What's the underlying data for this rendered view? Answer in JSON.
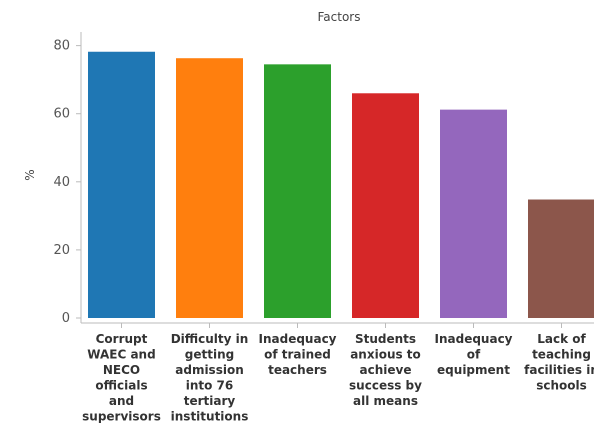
{
  "chart_data": {
    "type": "bar",
    "title": "Factors",
    "ylabel": "%",
    "xlabel": "",
    "ylim": [
      0,
      84
    ],
    "yticks": [
      0,
      20,
      40,
      60,
      80
    ],
    "grid": false,
    "legend": "none",
    "categories": [
      [
        "Corrupt",
        "WAEC and",
        "NECO",
        "officials",
        "and",
        "supervisors"
      ],
      [
        "Difficulty in",
        "getting",
        "admission",
        "into  76",
        "tertiary",
        "institutions"
      ],
      [
        "Inadequacy",
        "of trained",
        "teachers"
      ],
      [
        "Students",
        "anxious to",
        "achieve",
        "success by",
        "all means"
      ],
      [
        "Inadequacy",
        "of",
        "equipment"
      ],
      [
        "Lack of",
        "teaching",
        "facilities in",
        "schools"
      ]
    ],
    "values": [
      78.2,
      76.3,
      74.5,
      66.0,
      61.2,
      34.8
    ],
    "colors": [
      "#1f77b4",
      "#ff7f0e",
      "#2ca02c",
      "#d62728",
      "#9467bd",
      "#8c564b"
    ]
  }
}
